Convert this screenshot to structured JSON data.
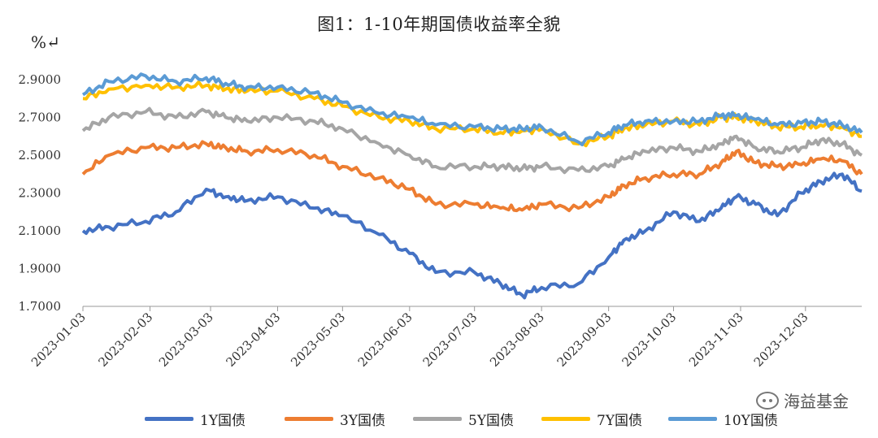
{
  "header": {
    "title": "图1：1-10年期国债收益率全貌",
    "unit": "%↵"
  },
  "watermark": {
    "text": "海益基金",
    "icon": "wechat-icon"
  },
  "chart_data": {
    "type": "line",
    "title": "图1：1-10年期国债收益率全貌",
    "ylabel": "%",
    "ylim": [
      1.7,
      2.9
    ],
    "yticks": [
      "1.7000",
      "1.9000",
      "2.1000",
      "2.3000",
      "2.5000",
      "2.7000",
      "2.9000"
    ],
    "x_range": [
      "2023-01-03",
      "2023-12-29"
    ],
    "xticks": [
      "2023-01-03",
      "2023-02-03",
      "2023-03-03",
      "2023-04-03",
      "2023-05-03",
      "2023-06-03",
      "2023-07-03",
      "2023-08-03",
      "2023-09-03",
      "2023-10-03",
      "2023-11-03",
      "2023-12-03"
    ],
    "grid": false,
    "legend_position": "bottom",
    "series": [
      {
        "name": "1Y国债",
        "color": "#4472C4",
        "x": [
          "2023-01-03",
          "2023-01-15",
          "2023-02-01",
          "2023-02-15",
          "2023-03-01",
          "2023-03-10",
          "2023-03-20",
          "2023-04-03",
          "2023-04-20",
          "2023-05-03",
          "2023-05-20",
          "2023-06-03",
          "2023-06-15",
          "2023-07-03",
          "2023-07-15",
          "2023-07-25",
          "2023-08-03",
          "2023-08-20",
          "2023-09-03",
          "2023-09-10",
          "2023-09-20",
          "2023-10-03",
          "2023-10-15",
          "2023-10-25",
          "2023-11-01",
          "2023-11-10",
          "2023-11-20",
          "2023-12-01",
          "2023-12-10",
          "2023-12-20",
          "2023-12-29"
        ],
        "values": [
          2.1,
          2.12,
          2.15,
          2.2,
          2.32,
          2.28,
          2.26,
          2.28,
          2.22,
          2.18,
          2.08,
          1.98,
          1.88,
          1.88,
          1.82,
          1.76,
          1.8,
          1.82,
          1.96,
          2.05,
          2.1,
          2.2,
          2.15,
          2.22,
          2.28,
          2.24,
          2.18,
          2.3,
          2.36,
          2.4,
          2.31
        ]
      },
      {
        "name": "3Y国债",
        "color": "#ED7D31",
        "x": [
          "2023-01-03",
          "2023-01-15",
          "2023-02-01",
          "2023-02-15",
          "2023-03-01",
          "2023-03-10",
          "2023-03-20",
          "2023-04-03",
          "2023-04-20",
          "2023-05-03",
          "2023-05-20",
          "2023-06-03",
          "2023-06-15",
          "2023-07-03",
          "2023-07-15",
          "2023-07-25",
          "2023-08-03",
          "2023-08-20",
          "2023-09-03",
          "2023-09-10",
          "2023-09-20",
          "2023-10-03",
          "2023-10-15",
          "2023-10-25",
          "2023-11-01",
          "2023-11-10",
          "2023-11-20",
          "2023-12-01",
          "2023-12-10",
          "2023-12-20",
          "2023-12-29"
        ],
        "values": [
          2.4,
          2.5,
          2.54,
          2.54,
          2.56,
          2.54,
          2.52,
          2.53,
          2.5,
          2.44,
          2.38,
          2.32,
          2.24,
          2.24,
          2.22,
          2.21,
          2.24,
          2.22,
          2.28,
          2.34,
          2.38,
          2.4,
          2.4,
          2.46,
          2.52,
          2.46,
          2.44,
          2.45,
          2.48,
          2.47,
          2.4
        ]
      },
      {
        "name": "5Y国债",
        "color": "#A5A5A5",
        "x": [
          "2023-01-03",
          "2023-01-15",
          "2023-02-01",
          "2023-02-15",
          "2023-03-01",
          "2023-03-10",
          "2023-03-20",
          "2023-04-03",
          "2023-04-20",
          "2023-05-03",
          "2023-05-20",
          "2023-06-03",
          "2023-06-15",
          "2023-07-03",
          "2023-07-15",
          "2023-07-25",
          "2023-08-03",
          "2023-08-20",
          "2023-09-03",
          "2023-09-10",
          "2023-09-20",
          "2023-10-03",
          "2023-10-15",
          "2023-10-25",
          "2023-11-01",
          "2023-11-10",
          "2023-11-20",
          "2023-12-01",
          "2023-12-10",
          "2023-12-20",
          "2023-12-29"
        ],
        "values": [
          2.63,
          2.7,
          2.73,
          2.7,
          2.73,
          2.7,
          2.68,
          2.7,
          2.68,
          2.64,
          2.56,
          2.5,
          2.44,
          2.44,
          2.44,
          2.43,
          2.44,
          2.42,
          2.44,
          2.48,
          2.52,
          2.54,
          2.52,
          2.56,
          2.6,
          2.54,
          2.52,
          2.54,
          2.58,
          2.56,
          2.5
        ]
      },
      {
        "name": "7Y国债",
        "color": "#FFC000",
        "x": [
          "2023-01-03",
          "2023-01-15",
          "2023-02-01",
          "2023-02-15",
          "2023-03-01",
          "2023-03-10",
          "2023-03-20",
          "2023-04-03",
          "2023-04-20",
          "2023-05-03",
          "2023-05-20",
          "2023-06-03",
          "2023-06-15",
          "2023-07-03",
          "2023-07-15",
          "2023-07-25",
          "2023-08-03",
          "2023-08-20",
          "2023-09-03",
          "2023-09-10",
          "2023-09-20",
          "2023-10-03",
          "2023-10-15",
          "2023-10-25",
          "2023-11-01",
          "2023-11-10",
          "2023-11-20",
          "2023-12-01",
          "2023-12-10",
          "2023-12-20",
          "2023-12-29"
        ],
        "values": [
          2.8,
          2.85,
          2.87,
          2.86,
          2.87,
          2.85,
          2.84,
          2.84,
          2.8,
          2.76,
          2.7,
          2.68,
          2.64,
          2.64,
          2.62,
          2.63,
          2.64,
          2.56,
          2.6,
          2.64,
          2.66,
          2.68,
          2.66,
          2.7,
          2.7,
          2.68,
          2.65,
          2.65,
          2.66,
          2.65,
          2.6
        ]
      },
      {
        "name": "10Y国债",
        "color": "#5B9BD5",
        "x": [
          "2023-01-03",
          "2023-01-15",
          "2023-02-01",
          "2023-02-15",
          "2023-03-01",
          "2023-03-10",
          "2023-03-20",
          "2023-04-03",
          "2023-04-20",
          "2023-05-03",
          "2023-05-20",
          "2023-06-03",
          "2023-06-15",
          "2023-07-03",
          "2023-07-15",
          "2023-07-25",
          "2023-08-03",
          "2023-08-20",
          "2023-09-03",
          "2023-09-10",
          "2023-09-20",
          "2023-10-03",
          "2023-10-15",
          "2023-10-25",
          "2023-11-01",
          "2023-11-10",
          "2023-11-20",
          "2023-12-01",
          "2023-12-10",
          "2023-12-20",
          "2023-12-29"
        ],
        "values": [
          2.82,
          2.89,
          2.92,
          2.89,
          2.91,
          2.88,
          2.86,
          2.86,
          2.83,
          2.78,
          2.72,
          2.7,
          2.66,
          2.65,
          2.64,
          2.64,
          2.65,
          2.57,
          2.62,
          2.66,
          2.68,
          2.68,
          2.68,
          2.71,
          2.71,
          2.69,
          2.66,
          2.67,
          2.68,
          2.66,
          2.62
        ]
      }
    ]
  }
}
